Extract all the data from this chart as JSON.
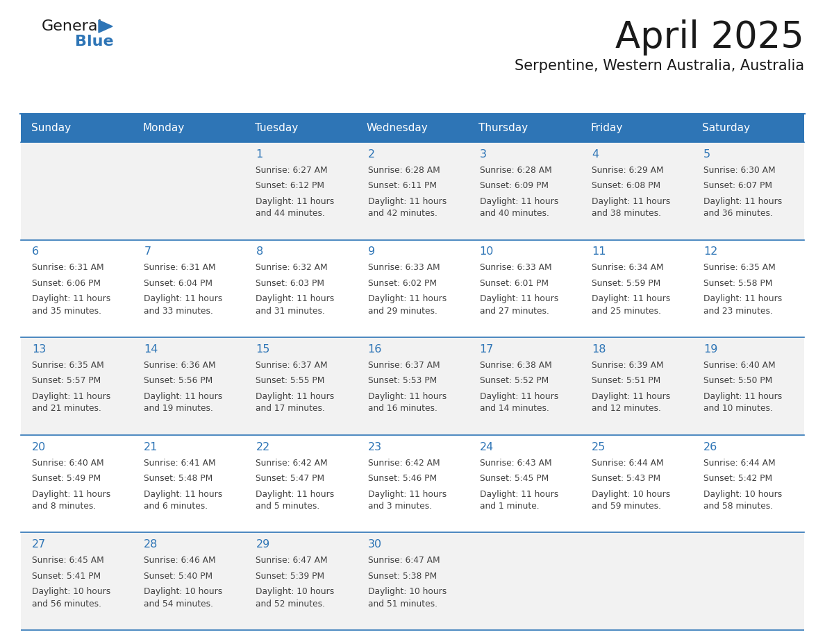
{
  "title": "April 2025",
  "subtitle": "Serpentine, Western Australia, Australia",
  "days_of_week": [
    "Sunday",
    "Monday",
    "Tuesday",
    "Wednesday",
    "Thursday",
    "Friday",
    "Saturday"
  ],
  "header_bg": "#2E75B6",
  "header_text": "#FFFFFF",
  "row_bg_odd": "#F2F2F2",
  "row_bg_even": "#FFFFFF",
  "cell_border": "#2E75B6",
  "day_num_color": "#2E75B6",
  "text_color": "#404040",
  "title_color": "#1a1a1a",
  "subtitle_color": "#1a1a1a",
  "logo_color_general": "#1a1a1a",
  "logo_color_blue": "#2E75B6",
  "calendar_data": [
    [
      {
        "day": null,
        "sunrise": null,
        "sunset": null,
        "daylight": null
      },
      {
        "day": null,
        "sunrise": null,
        "sunset": null,
        "daylight": null
      },
      {
        "day": 1,
        "sunrise": "6:27 AM",
        "sunset": "6:12 PM",
        "daylight": "11 hours\nand 44 minutes."
      },
      {
        "day": 2,
        "sunrise": "6:28 AM",
        "sunset": "6:11 PM",
        "daylight": "11 hours\nand 42 minutes."
      },
      {
        "day": 3,
        "sunrise": "6:28 AM",
        "sunset": "6:09 PM",
        "daylight": "11 hours\nand 40 minutes."
      },
      {
        "day": 4,
        "sunrise": "6:29 AM",
        "sunset": "6:08 PM",
        "daylight": "11 hours\nand 38 minutes."
      },
      {
        "day": 5,
        "sunrise": "6:30 AM",
        "sunset": "6:07 PM",
        "daylight": "11 hours\nand 36 minutes."
      }
    ],
    [
      {
        "day": 6,
        "sunrise": "6:31 AM",
        "sunset": "6:06 PM",
        "daylight": "11 hours\nand 35 minutes."
      },
      {
        "day": 7,
        "sunrise": "6:31 AM",
        "sunset": "6:04 PM",
        "daylight": "11 hours\nand 33 minutes."
      },
      {
        "day": 8,
        "sunrise": "6:32 AM",
        "sunset": "6:03 PM",
        "daylight": "11 hours\nand 31 minutes."
      },
      {
        "day": 9,
        "sunrise": "6:33 AM",
        "sunset": "6:02 PM",
        "daylight": "11 hours\nand 29 minutes."
      },
      {
        "day": 10,
        "sunrise": "6:33 AM",
        "sunset": "6:01 PM",
        "daylight": "11 hours\nand 27 minutes."
      },
      {
        "day": 11,
        "sunrise": "6:34 AM",
        "sunset": "5:59 PM",
        "daylight": "11 hours\nand 25 minutes."
      },
      {
        "day": 12,
        "sunrise": "6:35 AM",
        "sunset": "5:58 PM",
        "daylight": "11 hours\nand 23 minutes."
      }
    ],
    [
      {
        "day": 13,
        "sunrise": "6:35 AM",
        "sunset": "5:57 PM",
        "daylight": "11 hours\nand 21 minutes."
      },
      {
        "day": 14,
        "sunrise": "6:36 AM",
        "sunset": "5:56 PM",
        "daylight": "11 hours\nand 19 minutes."
      },
      {
        "day": 15,
        "sunrise": "6:37 AM",
        "sunset": "5:55 PM",
        "daylight": "11 hours\nand 17 minutes."
      },
      {
        "day": 16,
        "sunrise": "6:37 AM",
        "sunset": "5:53 PM",
        "daylight": "11 hours\nand 16 minutes."
      },
      {
        "day": 17,
        "sunrise": "6:38 AM",
        "sunset": "5:52 PM",
        "daylight": "11 hours\nand 14 minutes."
      },
      {
        "day": 18,
        "sunrise": "6:39 AM",
        "sunset": "5:51 PM",
        "daylight": "11 hours\nand 12 minutes."
      },
      {
        "day": 19,
        "sunrise": "6:40 AM",
        "sunset": "5:50 PM",
        "daylight": "11 hours\nand 10 minutes."
      }
    ],
    [
      {
        "day": 20,
        "sunrise": "6:40 AM",
        "sunset": "5:49 PM",
        "daylight": "11 hours\nand 8 minutes."
      },
      {
        "day": 21,
        "sunrise": "6:41 AM",
        "sunset": "5:48 PM",
        "daylight": "11 hours\nand 6 minutes."
      },
      {
        "day": 22,
        "sunrise": "6:42 AM",
        "sunset": "5:47 PM",
        "daylight": "11 hours\nand 5 minutes."
      },
      {
        "day": 23,
        "sunrise": "6:42 AM",
        "sunset": "5:46 PM",
        "daylight": "11 hours\nand 3 minutes."
      },
      {
        "day": 24,
        "sunrise": "6:43 AM",
        "sunset": "5:45 PM",
        "daylight": "11 hours\nand 1 minute."
      },
      {
        "day": 25,
        "sunrise": "6:44 AM",
        "sunset": "5:43 PM",
        "daylight": "10 hours\nand 59 minutes."
      },
      {
        "day": 26,
        "sunrise": "6:44 AM",
        "sunset": "5:42 PM",
        "daylight": "10 hours\nand 58 minutes."
      }
    ],
    [
      {
        "day": 27,
        "sunrise": "6:45 AM",
        "sunset": "5:41 PM",
        "daylight": "10 hours\nand 56 minutes."
      },
      {
        "day": 28,
        "sunrise": "6:46 AM",
        "sunset": "5:40 PM",
        "daylight": "10 hours\nand 54 minutes."
      },
      {
        "day": 29,
        "sunrise": "6:47 AM",
        "sunset": "5:39 PM",
        "daylight": "10 hours\nand 52 minutes."
      },
      {
        "day": 30,
        "sunrise": "6:47 AM",
        "sunset": "5:38 PM",
        "daylight": "10 hours\nand 51 minutes."
      },
      {
        "day": null,
        "sunrise": null,
        "sunset": null,
        "daylight": null
      },
      {
        "day": null,
        "sunrise": null,
        "sunset": null,
        "daylight": null
      },
      {
        "day": null,
        "sunrise": null,
        "sunset": null,
        "daylight": null
      }
    ]
  ]
}
